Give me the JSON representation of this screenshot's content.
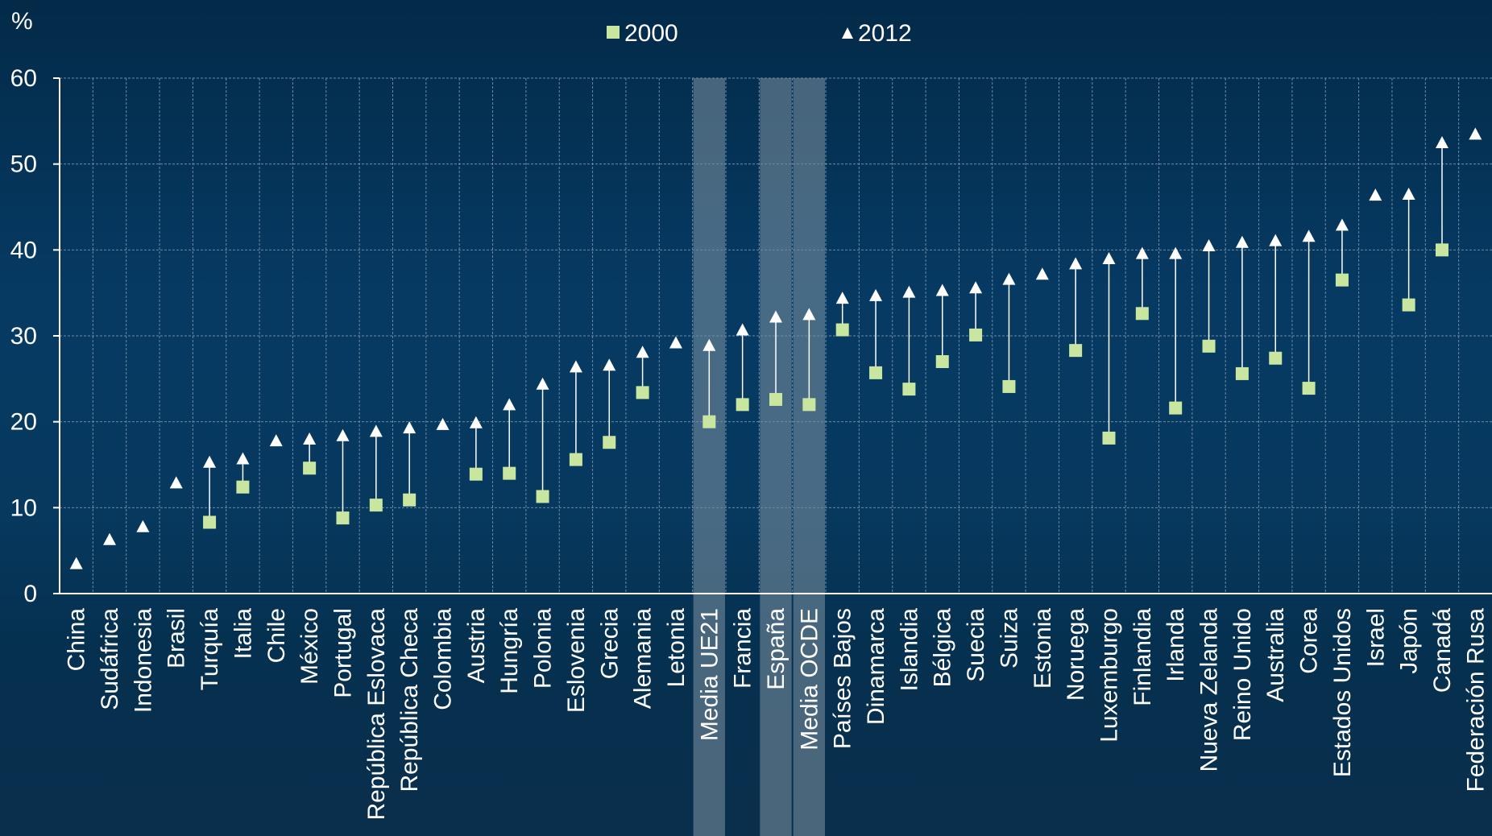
{
  "chart_data": {
    "type": "scatter",
    "ylabel": "%",
    "ylim": [
      0,
      60
    ],
    "yticks": [
      "0",
      "10",
      "20",
      "30",
      "40",
      "50",
      "60"
    ],
    "grid": true,
    "legend_position": "top-center",
    "colors": {
      "series_2000": "#c9e6a0",
      "series_2012": "#ffffff",
      "highlight": "#7f93a3",
      "grid": "#6e8aa3"
    },
    "highlighted": [
      "Media UE21",
      "España",
      "Media OCDE"
    ],
    "categories": [
      "China",
      "Sudáfrica",
      "Indonesia",
      "Brasil",
      "Turquía",
      "Italia",
      "Chile",
      "México",
      "Portugal",
      "República Eslovaca",
      "República Checa",
      "Colombia",
      "Austria",
      "Hungría",
      "Polonia",
      "Eslovenia",
      "Grecia",
      "Alemania",
      "Letonia",
      "Media UE21",
      "Francia",
      "España",
      "Media OCDE",
      "Países Bajos",
      "Dinamarca",
      "Islandia",
      "Bélgica",
      "Suecia",
      "Suiza",
      "Estonia",
      "Noruega",
      "Luxemburgo",
      "Finlandia",
      "Irlanda",
      "Nueva Zelanda",
      "Reino Unido",
      "Australia",
      "Corea",
      "Estados Unidos",
      "Israel",
      "Japón",
      "Canadá",
      "Federación Rusa"
    ],
    "series": [
      {
        "name": "2000",
        "marker": "square",
        "values": [
          null,
          null,
          null,
          null,
          8.3,
          12.4,
          null,
          14.6,
          8.8,
          10.3,
          10.9,
          null,
          13.9,
          14.0,
          11.3,
          15.6,
          17.6,
          23.4,
          null,
          20.0,
          22.0,
          22.6,
          22.0,
          30.7,
          25.7,
          23.8,
          27.0,
          30.1,
          24.1,
          null,
          28.3,
          18.1,
          32.6,
          21.6,
          28.8,
          25.6,
          27.4,
          23.9,
          36.5,
          null,
          33.6,
          40.0,
          null
        ]
      },
      {
        "name": "2012",
        "marker": "triangle",
        "values": [
          3.5,
          6.3,
          7.8,
          12.9,
          15.3,
          15.7,
          17.8,
          18.0,
          18.4,
          18.9,
          19.3,
          19.7,
          19.9,
          22.0,
          24.4,
          26.4,
          26.6,
          28.1,
          29.2,
          28.9,
          30.7,
          32.2,
          32.5,
          34.4,
          34.7,
          35.1,
          35.3,
          35.6,
          36.6,
          37.2,
          38.4,
          39.0,
          39.6,
          39.6,
          40.5,
          40.9,
          41.1,
          41.6,
          42.9,
          46.4,
          46.5,
          52.5,
          53.5
        ]
      }
    ]
  }
}
